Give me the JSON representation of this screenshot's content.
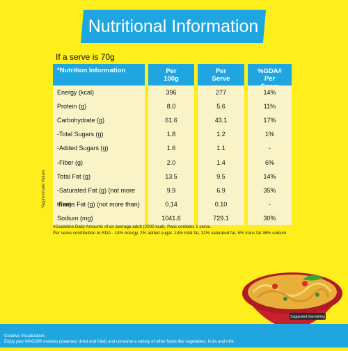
{
  "title": "Nutritional Information",
  "serve_info": "If a serve is 70g",
  "side_note": "*Approximate Values",
  "headers": {
    "c1": "*Nutrition Information",
    "c2": "Per 100g",
    "c3": "Per Serve",
    "c4": "%GDA# Per Serve"
  },
  "rows": [
    {
      "label": "Energy (kcal)",
      "per100": "396",
      "perserve": "277",
      "gda": "14%"
    },
    {
      "label": "Protein (g)",
      "per100": "8.0",
      "perserve": "5.6",
      "gda": "11%"
    },
    {
      "label": "Carbohydrate (g)",
      "per100": "61.6",
      "perserve": "43.1",
      "gda": "17%"
    },
    {
      "label": "-Total Sugars (g)",
      "per100": "1.8",
      "perserve": "1.2",
      "gda": "1%"
    },
    {
      "label": "-Added Sugars (g)",
      "per100": "1.6",
      "perserve": "1.1",
      "gda": "-"
    },
    {
      "label": "-Fiber (g)",
      "per100": "2.0",
      "perserve": "1.4",
      "gda": "6%"
    },
    {
      "label": "Total Fat (g)",
      "per100": "13.5",
      "perserve": "9.5",
      "gda": "14%"
    },
    {
      "label": "-Saturated Fat (g) (not more than)",
      "per100": "9.9",
      "perserve": "6.9",
      "gda": "35%"
    },
    {
      "label": "-Trans Fat (g) (not more than)",
      "per100": "0.14",
      "perserve": "0.10",
      "gda": "-"
    },
    {
      "label": "Sodium (mg)",
      "per100": "1041.6",
      "perserve": "729.1",
      "gda": "30%"
    }
  ],
  "footnotes": [
    "#Guideline Daily Amounts of an average adult  (2000 kcal). Pack contains 1 serve.",
    "Per serve contribution to RDA - 14% energy, 2% added sugar, 14% total fat, 32% saturated fat, 5% trans fat 36% sodium"
  ],
  "bottom": {
    "line1": "Creative Visualization.",
    "line2": "Enjoy your MAGGI® noodles (steamed, dried and fried) and consume a variety of other foods like vegetables, fruits and milk."
  },
  "bowl_label": "Suggested Garnishing",
  "colors": {
    "background": "#fdee1c",
    "accent": "#1fa6e0",
    "row_bg": "#fbf3c8"
  }
}
